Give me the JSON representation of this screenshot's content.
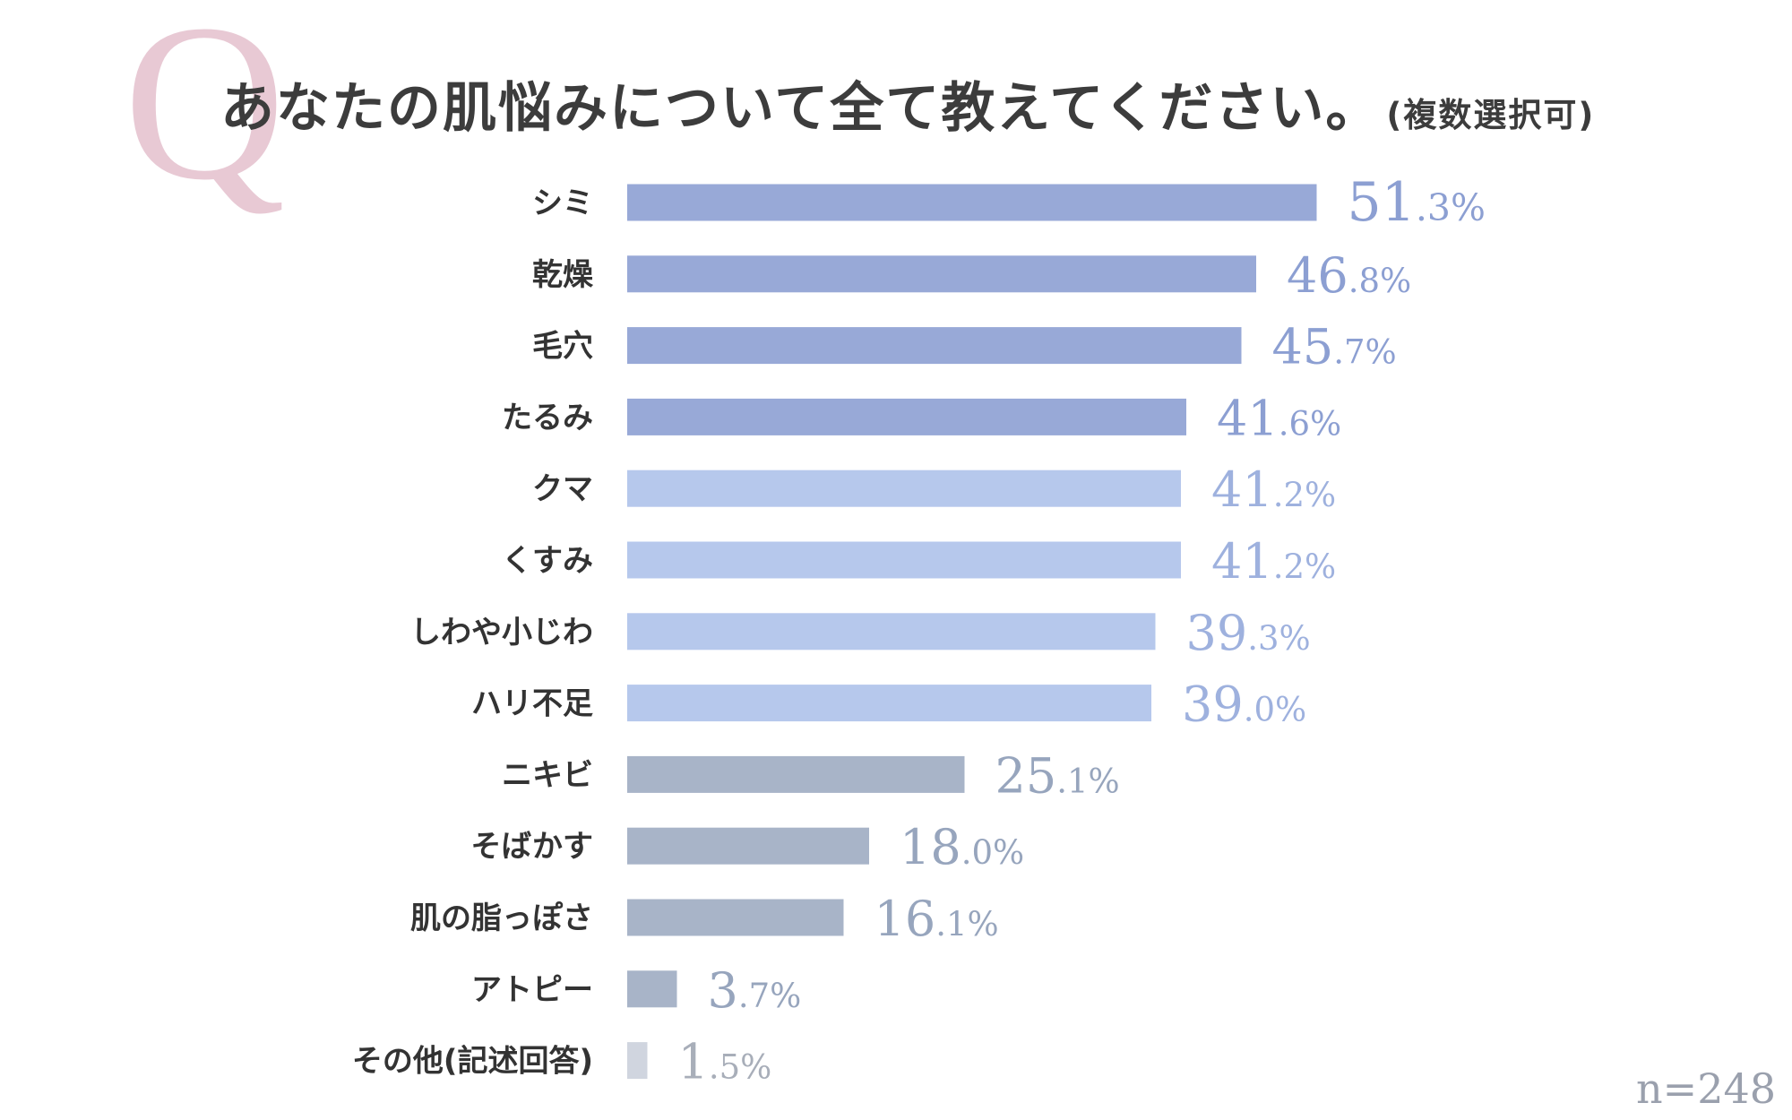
{
  "header": {
    "q_mark": "Q",
    "title": "あなたの肌悩みについて全て教えてください。",
    "subtitle": "(複数選択可)"
  },
  "sample_size": "n=248",
  "colors": {
    "tier1": "#98a9d7",
    "tier2": "#b6c8ec",
    "tier3": "#a8b4c8",
    "tier4": "#d0d5df",
    "value_text_1": "#8c9fd2",
    "value_text_2": "#9eb1de",
    "value_text_3": "#97a5bd",
    "value_text_4": "#a8aeb9",
    "q_mark": "#e8c9d4"
  },
  "chart_data": {
    "type": "bar",
    "orientation": "horizontal",
    "title": "あなたの肌悩みについて全て教えてください。(複数選択可)",
    "categories": [
      "シミ",
      "乾燥",
      "毛穴",
      "たるみ",
      "クマ",
      "くすみ",
      "しわや小じわ",
      "ハリ不足",
      "ニキビ",
      "そばかす",
      "肌の脂っぽさ",
      "アトピー",
      "その他(記述回答)"
    ],
    "values": [
      51.3,
      46.8,
      45.7,
      41.6,
      41.2,
      41.2,
      39.3,
      39.0,
      25.1,
      18.0,
      16.1,
      3.7,
      1.5
    ],
    "unit": "%",
    "color_tiers": [
      1,
      1,
      1,
      1,
      2,
      2,
      2,
      2,
      3,
      3,
      3,
      3,
      4
    ],
    "xlabel": "",
    "ylabel": "",
    "grid": false,
    "legend": "none"
  }
}
